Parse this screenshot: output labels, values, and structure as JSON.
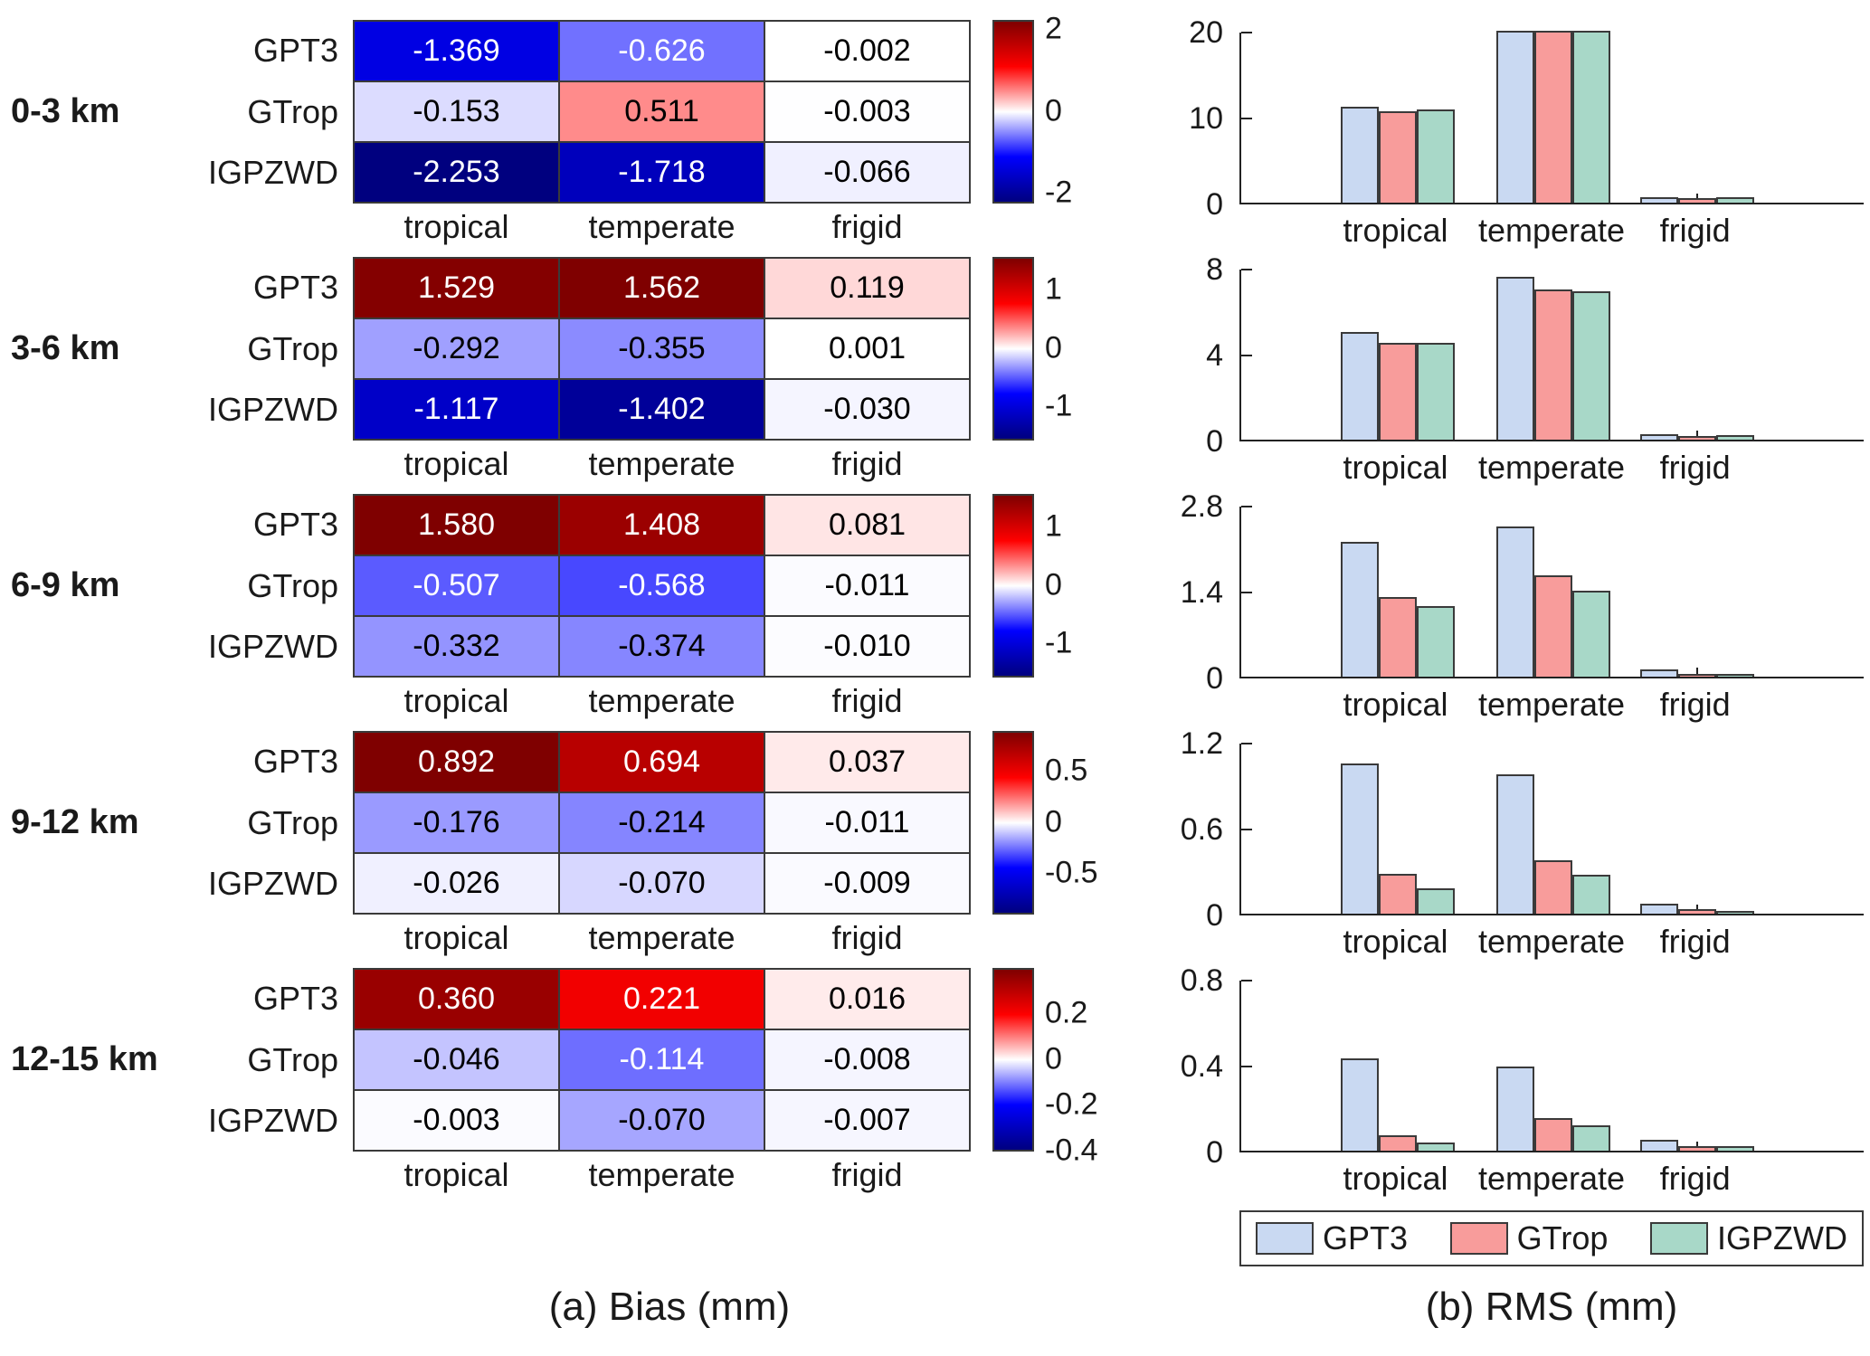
{
  "captions": {
    "bias": "(a) Bias (mm)",
    "rms": "(b) RMS (mm)"
  },
  "labels": {
    "rows": [
      "GPT3",
      "GTrop",
      "IGPZWD"
    ],
    "cols": [
      "tropical",
      "temperate",
      "frigid"
    ]
  },
  "colors": {
    "series": {
      "GPT3": "#c9d9f2",
      "GTrop": "#f89c9b",
      "IGPZWD": "#a8d8c8"
    },
    "bar_border": "#3a3a3a",
    "heat": {
      "darkred": "#7f0000",
      "red": "#ff0000",
      "white": "#ffffff",
      "blue": "#0000ff",
      "darkblue": "#00007f"
    }
  },
  "chart_data": {
    "heatmaps": [
      {
        "type": "heatmap",
        "band": "0-3 km",
        "rows": [
          "GPT3",
          "GTrop",
          "IGPZWD"
        ],
        "cols": [
          "tropical",
          "temperate",
          "frigid"
        ],
        "values": [
          [
            -1.369,
            -0.626,
            -0.002
          ],
          [
            -0.153,
            0.511,
            -0.003
          ],
          [
            -2.253,
            -1.718,
            -0.066
          ]
        ],
        "cmin": -2.253,
        "cmax": 2.253,
        "cbar_ticks": [
          2,
          0,
          -2
        ]
      },
      {
        "type": "heatmap",
        "band": "3-6 km",
        "rows": [
          "GPT3",
          "GTrop",
          "IGPZWD"
        ],
        "cols": [
          "tropical",
          "temperate",
          "frigid"
        ],
        "values": [
          [
            1.529,
            1.562,
            0.119
          ],
          [
            -0.292,
            -0.355,
            0.001
          ],
          [
            -1.117,
            -1.402,
            -0.03
          ]
        ],
        "cmin": -1.562,
        "cmax": 1.562,
        "cbar_ticks": [
          1,
          0,
          -1
        ]
      },
      {
        "type": "heatmap",
        "band": "6-9 km",
        "rows": [
          "GPT3",
          "GTrop",
          "IGPZWD"
        ],
        "cols": [
          "tropical",
          "temperate",
          "frigid"
        ],
        "values": [
          [
            1.58,
            1.408,
            0.081
          ],
          [
            -0.507,
            -0.568,
            -0.011
          ],
          [
            -0.332,
            -0.374,
            -0.01
          ]
        ],
        "cmin": -1.58,
        "cmax": 1.58,
        "cbar_ticks": [
          1,
          0,
          -1
        ]
      },
      {
        "type": "heatmap",
        "band": "9-12 km",
        "rows": [
          "GPT3",
          "GTrop",
          "IGPZWD"
        ],
        "cols": [
          "tropical",
          "temperate",
          "frigid"
        ],
        "values": [
          [
            0.892,
            0.694,
            0.037
          ],
          [
            -0.176,
            -0.214,
            -0.011
          ],
          [
            -0.026,
            -0.07,
            -0.009
          ]
        ],
        "cmin": -0.892,
        "cmax": 0.892,
        "cbar_ticks": [
          0.5,
          0,
          -0.5
        ]
      },
      {
        "type": "heatmap",
        "band": "12-15 km",
        "rows": [
          "GPT3",
          "GTrop",
          "IGPZWD"
        ],
        "cols": [
          "tropical",
          "temperate",
          "frigid"
        ],
        "values": [
          [
            0.36,
            0.221,
            0.016
          ],
          [
            -0.046,
            -0.114,
            -0.008
          ],
          [
            -0.003,
            -0.07,
            -0.007
          ]
        ],
        "cmin": -0.4,
        "cmax": 0.4,
        "cbar_ticks": [
          0.2,
          0,
          -0.2,
          -0.4
        ]
      }
    ],
    "bar_charts": [
      {
        "type": "bar",
        "band": "0-3 km",
        "categories": [
          "tropical",
          "temperate",
          "frigid"
        ],
        "series": [
          {
            "name": "GPT3",
            "values": [
              11.2,
              20.0,
              0.6
            ]
          },
          {
            "name": "GTrop",
            "values": [
              10.6,
              20.0,
              0.5
            ]
          },
          {
            "name": "IGPZWD",
            "values": [
              10.8,
              20.0,
              0.6
            ]
          }
        ],
        "ylim": [
          0,
          20
        ],
        "yticks": [
          0,
          10,
          20
        ]
      },
      {
        "type": "bar",
        "band": "3-6 km",
        "categories": [
          "tropical",
          "temperate",
          "frigid"
        ],
        "series": [
          {
            "name": "GPT3",
            "values": [
              5.0,
              7.6,
              0.25
            ]
          },
          {
            "name": "GTrop",
            "values": [
              4.5,
              7.0,
              0.15
            ]
          },
          {
            "name": "IGPZWD",
            "values": [
              4.5,
              6.9,
              0.2
            ]
          }
        ],
        "ylim": [
          0,
          8
        ],
        "yticks": [
          0,
          4,
          8
        ]
      },
      {
        "type": "bar",
        "band": "6-9 km",
        "categories": [
          "tropical",
          "temperate",
          "frigid"
        ],
        "series": [
          {
            "name": "GPT3",
            "values": [
              2.2,
              2.45,
              0.12
            ]
          },
          {
            "name": "GTrop",
            "values": [
              1.3,
              1.65,
              0.05
            ]
          },
          {
            "name": "IGPZWD",
            "values": [
              1.15,
              1.4,
              0.04
            ]
          }
        ],
        "ylim": [
          0,
          2.8
        ],
        "yticks": [
          0,
          1.4,
          2.8
        ]
      },
      {
        "type": "bar",
        "band": "9-12 km",
        "categories": [
          "tropical",
          "temperate",
          "frigid"
        ],
        "series": [
          {
            "name": "GPT3",
            "values": [
              1.05,
              0.97,
              0.07
            ]
          },
          {
            "name": "GTrop",
            "values": [
              0.28,
              0.37,
              0.03
            ]
          },
          {
            "name": "IGPZWD",
            "values": [
              0.18,
              0.27,
              0.02
            ]
          }
        ],
        "ylim": [
          0,
          1.2
        ],
        "yticks": [
          0,
          0.6,
          1.2
        ]
      },
      {
        "type": "bar",
        "band": "12-15 km",
        "categories": [
          "tropical",
          "temperate",
          "frigid"
        ],
        "series": [
          {
            "name": "GPT3",
            "values": [
              0.43,
              0.39,
              0.05
            ]
          },
          {
            "name": "GTrop",
            "values": [
              0.07,
              0.15,
              0.02
            ]
          },
          {
            "name": "IGPZWD",
            "values": [
              0.04,
              0.12,
              0.02
            ]
          }
        ],
        "ylim": [
          0,
          0.8
        ],
        "yticks": [
          0,
          0.4,
          0.8
        ]
      }
    ],
    "legend": {
      "entries": [
        "GPT3",
        "GTrop",
        "IGPZWD"
      ]
    }
  }
}
